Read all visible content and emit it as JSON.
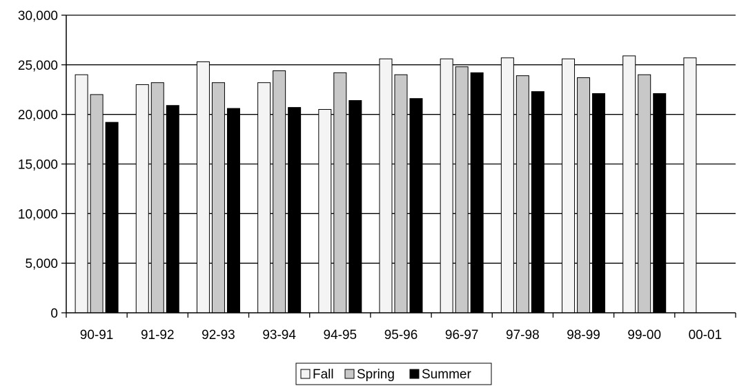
{
  "chart_data": {
    "type": "bar",
    "title": "",
    "xlabel": "",
    "ylabel": "",
    "ylim": [
      0,
      30000
    ],
    "yticks": [
      0,
      5000,
      10000,
      15000,
      20000,
      25000,
      30000
    ],
    "ytick_labels": [
      "0",
      "5,000",
      "10,000",
      "15,000",
      "20,000",
      "25,000",
      "30,000"
    ],
    "grid": true,
    "legend_position": "bottom",
    "categories": [
      "90-91",
      "91-92",
      "92-93",
      "93-94",
      "94-95",
      "95-96",
      "96-97",
      "97-98",
      "98-99",
      "99-00",
      "00-01"
    ],
    "series": [
      {
        "name": "Fall",
        "color": "#f4f4f4",
        "values": [
          24000,
          23000,
          25300,
          23200,
          20500,
          25600,
          25600,
          25700,
          25600,
          25900,
          25700
        ]
      },
      {
        "name": "Spring",
        "color": "#c8c8c8",
        "values": [
          22000,
          23200,
          23200,
          24400,
          24200,
          24000,
          24800,
          23900,
          23700,
          24000,
          null
        ]
      },
      {
        "name": "Summer",
        "color": "#000000",
        "values": [
          19200,
          20900,
          20600,
          20700,
          21400,
          21600,
          24200,
          22300,
          22100,
          22100,
          null
        ]
      }
    ]
  }
}
